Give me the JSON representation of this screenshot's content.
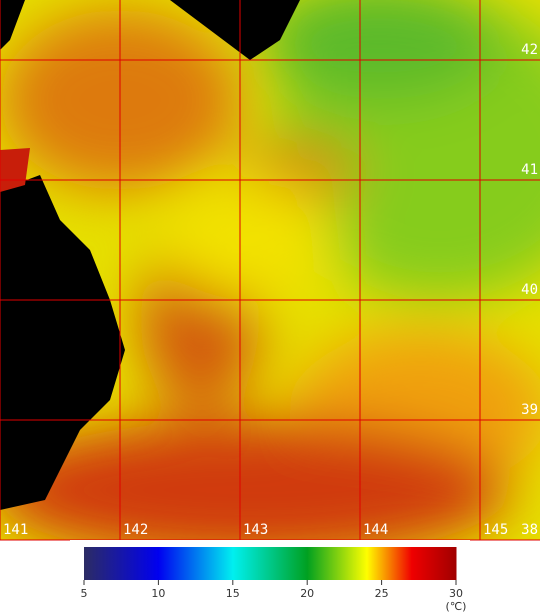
{
  "map": {
    "lon_range": [
      141,
      145.5
    ],
    "lat_range": [
      38,
      42.5
    ],
    "lon_ticks": [
      141,
      142,
      143,
      144,
      145
    ],
    "lat_ticks": [
      42,
      41,
      40,
      39,
      38
    ]
  },
  "colorbar": {
    "range": [
      5,
      30
    ],
    "ticks": [
      5,
      10,
      15,
      20,
      25,
      30
    ],
    "unit": "(℃)",
    "stops": [
      {
        "value": 5,
        "color": "#2c2c64"
      },
      {
        "value": 10,
        "color": "#0000f0"
      },
      {
        "value": 15,
        "color": "#00f0f0"
      },
      {
        "value": 20,
        "color": "#00a020"
      },
      {
        "value": 24,
        "color": "#ffff00"
      },
      {
        "value": 27,
        "color": "#f00000"
      },
      {
        "value": 30,
        "color": "#a00000"
      }
    ]
  }
}
